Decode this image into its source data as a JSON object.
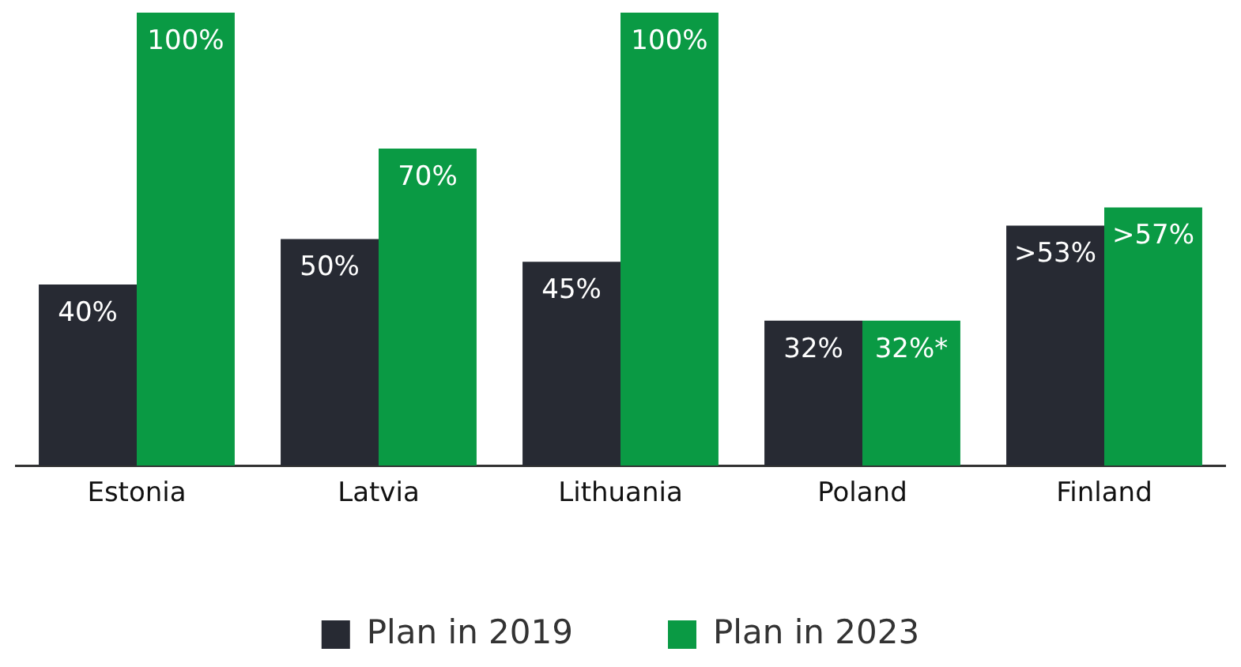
{
  "chart_data": {
    "type": "bar",
    "categories": [
      "Estonia",
      "Latvia",
      "Lithuania",
      "Poland",
      "Finland"
    ],
    "series": [
      {
        "name": "Plan in 2019",
        "color": "#272a33",
        "values": [
          40,
          50,
          45,
          32,
          53
        ],
        "value_labels": [
          "40%",
          "50%",
          "45%",
          "32%",
          ">53%"
        ]
      },
      {
        "name": "Plan in 2023",
        "color": "#0a9a44",
        "values": [
          100,
          70,
          100,
          32,
          57
        ],
        "value_labels": [
          "100%",
          "70%",
          "100%",
          "32%*",
          ">57%"
        ]
      }
    ],
    "ylim": [
      0,
      100
    ],
    "tick_labels": "x",
    "grid": false,
    "legend": "bottom"
  }
}
